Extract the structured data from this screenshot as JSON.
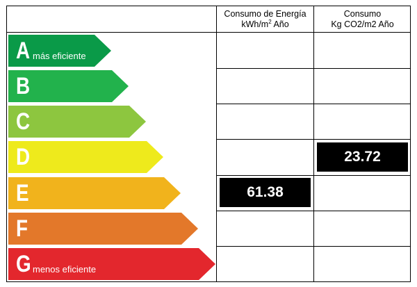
{
  "headers": {
    "energy_line1": "Consumo de Energía",
    "energy_line2": "kWh/m",
    "energy_sup": "2",
    "energy_line2_suffix": " Año",
    "co2_line1": "Consumo",
    "co2_line2": "Kg CO2/m2 Año"
  },
  "ratings": [
    {
      "letter": "A",
      "sub": "más eficiente",
      "color": "#0a9a48"
    },
    {
      "letter": "B",
      "sub": "",
      "color": "#22b24c"
    },
    {
      "letter": "C",
      "sub": "",
      "color": "#8dc63f"
    },
    {
      "letter": "D",
      "sub": "",
      "color": "#eeea1c"
    },
    {
      "letter": "E",
      "sub": "",
      "color": "#f1b31c"
    },
    {
      "letter": "F",
      "sub": "",
      "color": "#e3782a"
    },
    {
      "letter": "G",
      "sub": "menos eficiente",
      "color": "#e3272d"
    }
  ],
  "energy_value": {
    "rating": "E",
    "value": "61.38"
  },
  "co2_value": {
    "rating": "D",
    "value": "23.72"
  }
}
